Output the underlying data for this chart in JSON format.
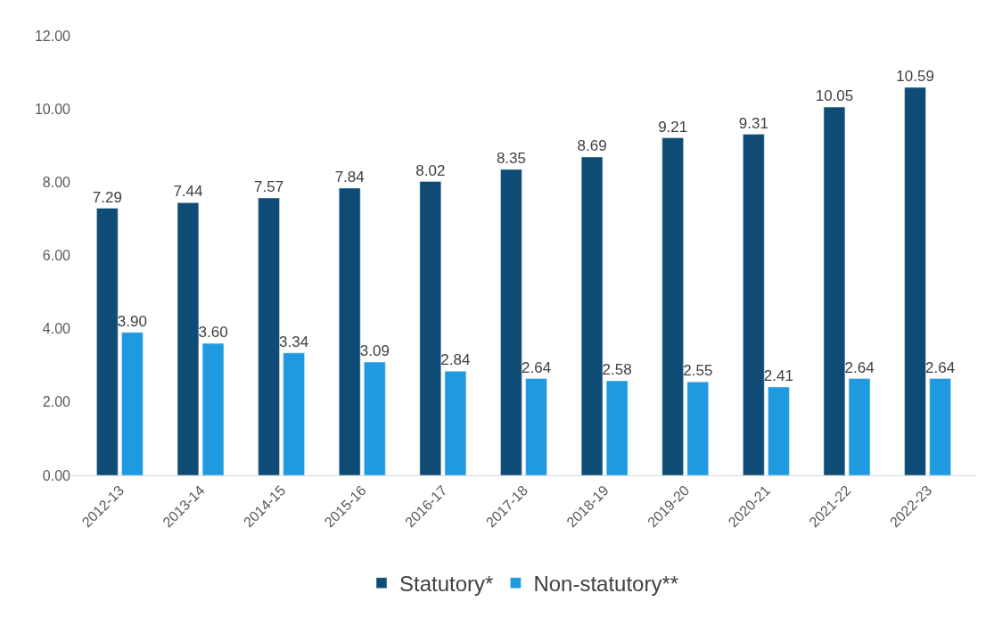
{
  "chart_data": {
    "type": "bar",
    "categories": [
      "2012-13",
      "2013-14",
      "2014-15",
      "2015-16",
      "2016-17",
      "2017-18",
      "2018-19",
      "2019-20",
      "2020-21",
      "2021-22",
      "2022-23"
    ],
    "series": [
      {
        "name": "Statutory*",
        "color": "#0f4c75",
        "values": [
          7.29,
          7.44,
          7.57,
          7.84,
          8.02,
          8.35,
          8.69,
          9.21,
          9.31,
          10.05,
          10.59
        ],
        "value_labels": [
          "7.29",
          "7.44",
          "7.57",
          "7.84",
          "8.02",
          "8.35",
          "8.69",
          "9.21",
          "9.31",
          "10.05",
          "10.59"
        ]
      },
      {
        "name": "Non-statutory**",
        "color": "#1f9ae0",
        "values": [
          3.9,
          3.6,
          3.34,
          3.09,
          2.84,
          2.64,
          2.58,
          2.55,
          2.41,
          2.64,
          2.64
        ],
        "value_labels": [
          "3.90",
          "3.60",
          "3.34",
          "3.09",
          "2.84",
          "2.64",
          "2.58",
          "2.55",
          "2.41",
          "2.64",
          "2.64"
        ]
      }
    ],
    "ylim": [
      0,
      12
    ],
    "yticks": [
      {
        "value": 0,
        "label": "0.00"
      },
      {
        "value": 2,
        "label": "2.00"
      },
      {
        "value": 4,
        "label": "4.00"
      },
      {
        "value": 6,
        "label": "6.00"
      },
      {
        "value": 8,
        "label": "8.00"
      },
      {
        "value": 10,
        "label": "10.00"
      },
      {
        "value": 12,
        "label": "12.00"
      }
    ],
    "legend": "bottom"
  }
}
